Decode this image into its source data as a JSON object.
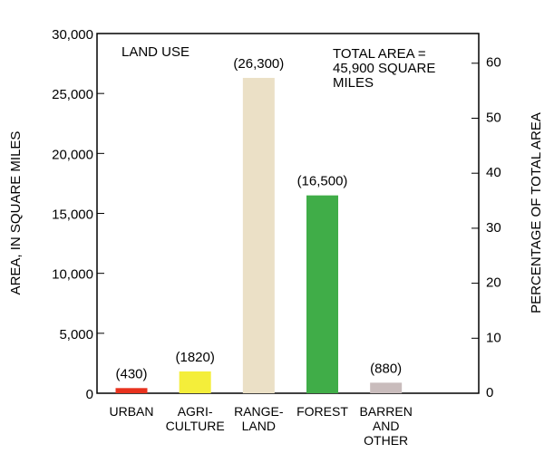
{
  "chart_data": {
    "type": "bar",
    "categories": [
      "URBAN",
      "AGRI-\nCULTURE",
      "RANGE-\nLAND",
      "FOREST",
      "BARREN\nAND\nOTHER"
    ],
    "values": [
      430,
      1820,
      26300,
      16500,
      880
    ],
    "value_labels": [
      "(430)",
      "(1820)",
      "(26,300)",
      "(16,500)",
      "(880)"
    ],
    "colors": [
      "#e8321e",
      "#f4ee3a",
      "#ebe0c6",
      "#40ad48",
      "#c9bcbc"
    ],
    "ylabel": "AREA, IN SQUARE MILES",
    "y2label": "PERCENTAGE OF TOTAL AREA",
    "ylim": [
      0,
      30000
    ],
    "yticks": [
      0,
      {
        "value": 5000,
        "label": "5,000"
      },
      {
        "value": 10000,
        "label": "10,000"
      },
      {
        "value": 15000,
        "label": "15,000"
      },
      {
        "value": 20000,
        "label": "20,000"
      },
      {
        "value": 25000,
        "label": "25,000"
      },
      {
        "value": 30000,
        "label": "30,000"
      }
    ],
    "y2lim": [
      0,
      65.4
    ],
    "y2ticks": [
      0,
      10,
      20,
      30,
      40,
      50,
      60
    ],
    "annotations": [
      "LAND USE",
      "TOTAL AREA =\n45,900 SQUARE\nMILES"
    ]
  }
}
